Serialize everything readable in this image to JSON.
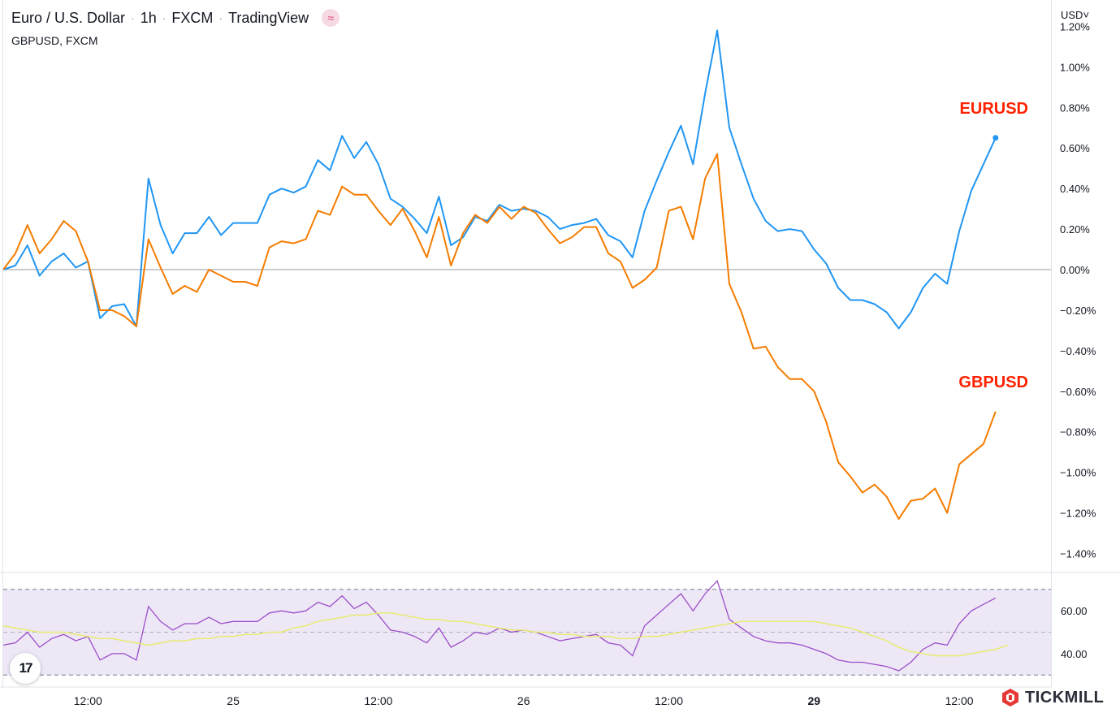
{
  "header": {
    "symbol": "Euro / U.S. Dollar",
    "interval": "1h",
    "exchange": "FXCM",
    "platform": "TradingView",
    "badge_icon": "wave-indicator-icon",
    "compare_symbol": "GBPUSD, FXCM"
  },
  "currency_selector": "USD",
  "branding": {
    "text": "TICKMILL",
    "logo_icon": "tickmill-logo-icon",
    "tv_icon": "tradingview-logo-icon",
    "tv_text": "17"
  },
  "chart_data": [
    {
      "type": "line",
      "y_unit": "%",
      "y_ticks": [
        "1.20%",
        "1.00%",
        "0.80%",
        "0.60%",
        "0.40%",
        "0.20%",
        "0.00%",
        "−0.20%",
        "−0.40%",
        "−0.60%",
        "−0.80%",
        "−1.00%",
        "−1.20%",
        "−1.40%"
      ],
      "y_tick_values": [
        1.2,
        1.0,
        0.8,
        0.6,
        0.4,
        0.2,
        0.0,
        -0.2,
        -0.4,
        -0.6,
        -0.8,
        -1.0,
        -1.2,
        -1.4
      ],
      "ylim": [
        -1.49,
        1.33
      ],
      "x_ticks": [
        {
          "label": "12:00",
          "index": 7
        },
        {
          "label": "25",
          "index": 19
        },
        {
          "label": "12:00",
          "index": 31
        },
        {
          "label": "26",
          "index": 43
        },
        {
          "label": "12:00",
          "index": 55
        },
        {
          "label": "29",
          "index": 67,
          "bold": true
        },
        {
          "label": "12:00",
          "index": 79
        }
      ],
      "series": [
        {
          "name": "EURUSD",
          "color": "#2196f3",
          "values": [
            0.0,
            0.02,
            0.12,
            -0.03,
            0.04,
            0.08,
            0.01,
            0.04,
            -0.24,
            -0.18,
            -0.17,
            -0.28,
            0.45,
            0.22,
            0.08,
            0.18,
            0.18,
            0.26,
            0.17,
            0.23,
            0.23,
            0.23,
            0.37,
            0.4,
            0.38,
            0.41,
            0.54,
            0.49,
            0.66,
            0.55,
            0.63,
            0.52,
            0.35,
            0.31,
            0.25,
            0.18,
            0.36,
            0.12,
            0.16,
            0.26,
            0.24,
            0.32,
            0.29,
            0.3,
            0.29,
            0.26,
            0.2,
            0.22,
            0.23,
            0.25,
            0.17,
            0.14,
            0.06,
            0.29,
            0.44,
            0.58,
            0.71,
            0.52,
            0.87,
            1.18,
            0.7,
            0.52,
            0.35,
            0.24,
            0.19,
            0.2,
            0.19,
            0.1,
            0.03,
            -0.09,
            -0.15,
            -0.15,
            -0.17,
            -0.21,
            -0.29,
            -0.21,
            -0.09,
            -0.02,
            -0.07,
            0.19,
            0.39,
            0.52,
            0.65
          ]
        },
        {
          "name": "GBPUSD",
          "color": "#f57c00",
          "values": [
            0.0,
            0.08,
            0.22,
            0.08,
            0.15,
            0.24,
            0.19,
            0.04,
            -0.2,
            -0.2,
            -0.23,
            -0.28,
            0.15,
            0.01,
            -0.12,
            -0.08,
            -0.11,
            0.0,
            -0.03,
            -0.06,
            -0.06,
            -0.08,
            0.11,
            0.14,
            0.13,
            0.15,
            0.29,
            0.27,
            0.41,
            0.37,
            0.37,
            0.29,
            0.22,
            0.3,
            0.19,
            0.06,
            0.26,
            0.02,
            0.18,
            0.27,
            0.23,
            0.31,
            0.25,
            0.31,
            0.28,
            0.2,
            0.13,
            0.16,
            0.21,
            0.21,
            0.08,
            0.04,
            -0.09,
            -0.05,
            0.01,
            0.29,
            0.31,
            0.15,
            0.45,
            0.57,
            -0.07,
            -0.21,
            -0.39,
            -0.38,
            -0.48,
            -0.54,
            -0.54,
            -0.6,
            -0.75,
            -0.95,
            -1.02,
            -1.1,
            -1.06,
            -1.12,
            -1.23,
            -1.14,
            -1.13,
            -1.08,
            -1.2,
            -0.96,
            -0.91,
            -0.86,
            -0.7
          ]
        }
      ],
      "annotations": [
        {
          "text": "EURUSD",
          "color": "#ff2200",
          "series": "EURUSD"
        },
        {
          "text": "GBPUSD",
          "color": "#ff2200",
          "series": "GBPUSD"
        }
      ]
    },
    {
      "type": "line",
      "y_ticks": [
        "60.00",
        "40.00"
      ],
      "y_tick_values": [
        60,
        40
      ],
      "ylim": [
        24.8,
        77.5
      ],
      "band": [
        30,
        70
      ],
      "midline": 50,
      "band_color": "#ede7f6",
      "series": [
        {
          "color": "#9c4ec9",
          "values": [
            44,
            45,
            50,
            43,
            47,
            49,
            46,
            48,
            37,
            40,
            40,
            37,
            62,
            55,
            51,
            54,
            54,
            57,
            54,
            55,
            55,
            55,
            59,
            60,
            59,
            60,
            64,
            62,
            67,
            61,
            64,
            58,
            51,
            50,
            48,
            45,
            52,
            43,
            46,
            50,
            49,
            52,
            50,
            51,
            50,
            48,
            46,
            47,
            48,
            49,
            45,
            44,
            39,
            53,
            58,
            63,
            68,
            60,
            68,
            74,
            56,
            52,
            48,
            46,
            45,
            45,
            44,
            42,
            40,
            37,
            36,
            36,
            35,
            34,
            32,
            36,
            42,
            45,
            44,
            54,
            60,
            63,
            66
          ]
        },
        {
          "color": "#e8ec70",
          "values": [
            53,
            52,
            51,
            50,
            50,
            50,
            49,
            48,
            47,
            47,
            46,
            45,
            44,
            45,
            46,
            46,
            47,
            47,
            48,
            48,
            49,
            49,
            50,
            50,
            52,
            53,
            55,
            56,
            57,
            58,
            58,
            59,
            59,
            58,
            57,
            56,
            56,
            55,
            55,
            54,
            53,
            52,
            51,
            51,
            50,
            50,
            49,
            49,
            48,
            48,
            48,
            47,
            47,
            48,
            48,
            49,
            50,
            51,
            52,
            53,
            54,
            55,
            55,
            55,
            55,
            55,
            55,
            55,
            54,
            53,
            52,
            50,
            48,
            46,
            43,
            41,
            40,
            39,
            39,
            39,
            40,
            41,
            42,
            44
          ]
        }
      ]
    }
  ]
}
